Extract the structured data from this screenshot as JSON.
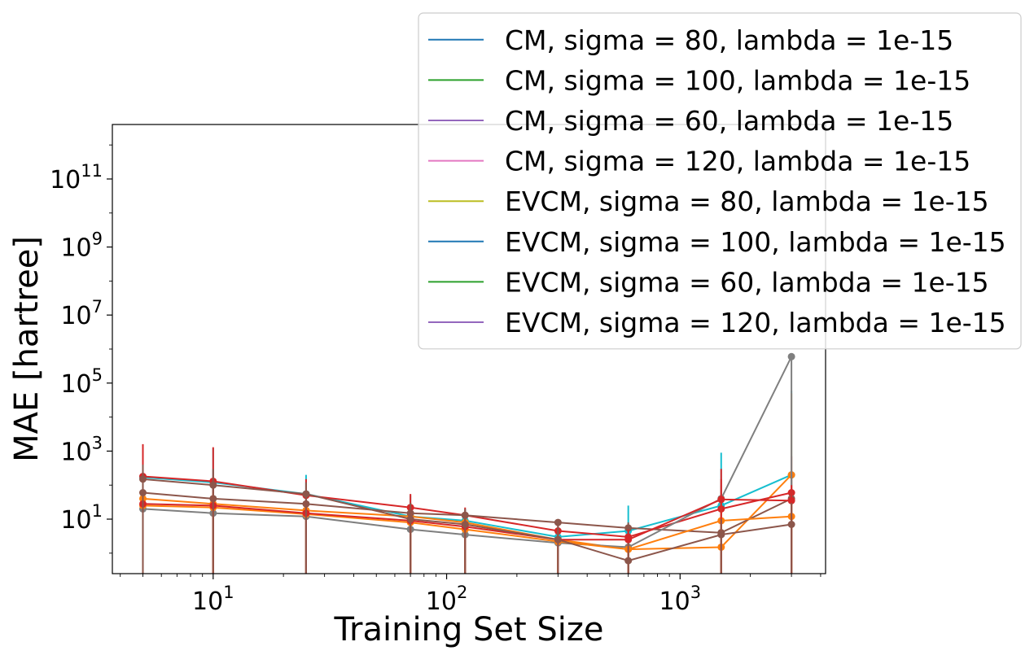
{
  "chart_data": {
    "type": "line",
    "xlabel": "Training Set Size",
    "ylabel": "MAE [hartree]",
    "xscale": "log",
    "yscale": "log",
    "xlim": [
      3.7,
      4200
    ],
    "ylim": [
      0.25,
      4000000000000.0
    ],
    "x_ticks": [
      {
        "value": 10,
        "base": "10",
        "exp": "1"
      },
      {
        "value": 100,
        "base": "10",
        "exp": "2"
      },
      {
        "value": 1000,
        "base": "10",
        "exp": "3"
      }
    ],
    "y_ticks": [
      {
        "value": 10,
        "base": "10",
        "exp": "1"
      },
      {
        "value": 1000,
        "base": "10",
        "exp": "3"
      },
      {
        "value": 100000,
        "base": "10",
        "exp": "5"
      },
      {
        "value": 10000000,
        "base": "10",
        "exp": "7"
      },
      {
        "value": 1000000000,
        "base": "10",
        "exp": "9"
      },
      {
        "value": 100000000000,
        "base": "10",
        "exp": "11"
      }
    ],
    "grid": false,
    "legend": {
      "placement": "top-right",
      "entries": [
        {
          "label": "CM, sigma = 80, lambda = 1e-15",
          "color": "#1f77b4"
        },
        {
          "label": "CM, sigma = 100, lambda = 1e-15",
          "color": "#2ca02c"
        },
        {
          "label": "CM, sigma = 60, lambda = 1e-15",
          "color": "#9467bd"
        },
        {
          "label": "CM, sigma = 120, lambda = 1e-15",
          "color": "#e377c2"
        },
        {
          "label": "EVCM, sigma = 80, lambda = 1e-15",
          "color": "#bcbd22"
        },
        {
          "label": "EVCM, sigma = 100, lambda = 1e-15",
          "color": "#1f77b4"
        },
        {
          "label": "EVCM, sigma = 60, lambda = 1e-15",
          "color": "#2ca02c"
        },
        {
          "label": "EVCM, sigma = 120, lambda = 1e-15",
          "color": "#9467bd"
        }
      ]
    },
    "x": [
      5,
      10,
      25,
      70,
      120,
      300,
      600,
      1500,
      3000
    ],
    "series": [
      {
        "color": "#17becf",
        "values": [
          170,
          120,
          55,
          12,
          9,
          3,
          4.5,
          25,
          200
        ],
        "err_low": [
          0.1,
          0.1,
          0.1,
          0.1,
          0.1,
          0.1,
          0.1,
          0.1,
          0.1
        ],
        "err_high": [
          1500,
          1200,
          200,
          50,
          20,
          5,
          25,
          900,
          60000
        ]
      },
      {
        "color": "#ff7f0e",
        "values": [
          40,
          28,
          18,
          12,
          8,
          2.5,
          1.3,
          1.5,
          200
        ],
        "err_low": [
          0.1,
          0.1,
          0.1,
          0.1,
          0.1,
          0.1,
          0.1,
          0.1,
          0.1
        ],
        "err_high": [
          300,
          150,
          60,
          30,
          15,
          5,
          3,
          10,
          50000
        ]
      },
      {
        "color": "#d62728",
        "values": [
          180,
          130,
          50,
          22,
          13,
          4.5,
          3,
          20,
          60
        ],
        "err_low": [
          0.1,
          0.1,
          0.1,
          0.1,
          0.1,
          0.1,
          0.1,
          0.1,
          0.1
        ],
        "err_high": [
          1600,
          1300,
          150,
          55,
          22,
          8,
          6,
          300,
          700
        ]
      },
      {
        "color": "#8c564b",
        "values": [
          60,
          40,
          28,
          15,
          13,
          8,
          5.5,
          4,
          40
        ],
        "err_low": [
          0.1,
          0.1,
          0.1,
          0.1,
          0.1,
          0.1,
          0.1,
          0.1,
          0.1
        ],
        "err_high": [
          200,
          100,
          50,
          30,
          20,
          10,
          8,
          20,
          200
        ]
      },
      {
        "color": "#7f7f7f",
        "values": [
          20,
          15,
          12,
          5,
          3.5,
          2,
          1.5,
          40,
          600000
        ],
        "err_low": [
          0.1,
          0.1,
          0.1,
          0.1,
          0.1,
          0.1,
          0.1,
          0.1,
          0.1
        ],
        "err_high": [
          60,
          40,
          25,
          10,
          6,
          3,
          3,
          100,
          700000
        ]
      },
      {
        "color": "#ff7f0e",
        "values": [
          25,
          22,
          14,
          8,
          5,
          2.2,
          1.3,
          9,
          12
        ],
        "err_low": [
          0.1,
          0.1,
          0.1,
          0.1,
          0.1,
          0.1,
          0.1,
          0.1,
          0.1
        ],
        "err_high": [
          80,
          60,
          30,
          15,
          9,
          4,
          3,
          30,
          40
        ]
      },
      {
        "color": "#d62728",
        "values": [
          28,
          25,
          15,
          9,
          6,
          2.5,
          2.5,
          38,
          35
        ],
        "err_low": [
          0.1,
          0.1,
          0.1,
          0.1,
          0.1,
          0.1,
          0.1,
          0.1,
          0.1
        ],
        "err_high": [
          100,
          80,
          35,
          20,
          12,
          5,
          5,
          150,
          100
        ]
      },
      {
        "color": "#8c564b",
        "values": [
          150,
          100,
          55,
          10,
          7,
          2.5,
          0.6,
          3.5,
          7
        ],
        "err_low": [
          0.1,
          0.1,
          0.1,
          0.1,
          0.1,
          0.1,
          0.1,
          0.1,
          0.1
        ],
        "err_high": [
          400,
          300,
          120,
          20,
          12,
          5,
          2,
          10,
          30
        ]
      }
    ]
  }
}
